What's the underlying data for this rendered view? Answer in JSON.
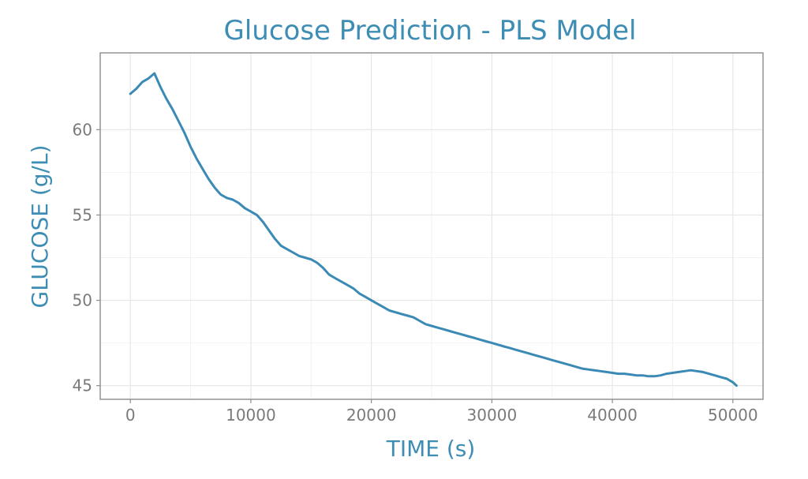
{
  "chart_data": {
    "type": "line",
    "title": "Glucose Prediction - PLS Model",
    "xlabel": "TIME (s)",
    "ylabel": "GLUCOSE (g/L)",
    "xlim": [
      -2500,
      52500
    ],
    "ylim": [
      44.2,
      64.5
    ],
    "x_ticks": [
      0,
      10000,
      20000,
      30000,
      40000,
      50000
    ],
    "x_tick_labels": [
      "0",
      "10000",
      "20000",
      "30000",
      "40000",
      "50000"
    ],
    "y_ticks": [
      45,
      50,
      55,
      60
    ],
    "y_tick_labels": [
      "45",
      "50",
      "55",
      "60"
    ],
    "grid": true,
    "colors": {
      "accent": "#3d8db5",
      "line": "#3b8ab5"
    },
    "series": [
      {
        "name": "Glucose",
        "x": [
          0,
          500,
          1000,
          1500,
          2000,
          2500,
          3000,
          3500,
          4000,
          4500,
          5000,
          5500,
          6000,
          6500,
          7000,
          7500,
          8000,
          8500,
          9000,
          9500,
          10000,
          10500,
          11000,
          11500,
          12000,
          12500,
          13000,
          13500,
          14000,
          14500,
          15000,
          15500,
          16000,
          16500,
          17000,
          17500,
          18000,
          18500,
          19000,
          19500,
          20000,
          20500,
          21000,
          21500,
          22000,
          22500,
          23000,
          23500,
          24000,
          24500,
          25000,
          25500,
          26000,
          26500,
          27000,
          27500,
          28000,
          28500,
          29000,
          29500,
          30000,
          30500,
          31000,
          31500,
          32000,
          32500,
          33000,
          33500,
          34000,
          34500,
          35000,
          35500,
          36000,
          36500,
          37000,
          37500,
          38000,
          38500,
          39000,
          39500,
          40000,
          40500,
          41000,
          41500,
          42000,
          42500,
          43000,
          43500,
          44000,
          44500,
          45000,
          45500,
          46000,
          46500,
          47000,
          47500,
          48000,
          48500,
          49000,
          49500,
          50000,
          50300
        ],
        "values": [
          62.1,
          62.4,
          62.8,
          63.0,
          63.3,
          62.5,
          61.8,
          61.2,
          60.5,
          59.8,
          59.0,
          58.3,
          57.7,
          57.1,
          56.6,
          56.2,
          56.0,
          55.9,
          55.7,
          55.4,
          55.2,
          55.0,
          54.6,
          54.1,
          53.6,
          53.2,
          53.0,
          52.8,
          52.6,
          52.5,
          52.4,
          52.2,
          51.9,
          51.5,
          51.3,
          51.1,
          50.9,
          50.7,
          50.4,
          50.2,
          50.0,
          49.8,
          49.6,
          49.4,
          49.3,
          49.2,
          49.1,
          49.0,
          48.8,
          48.6,
          48.5,
          48.4,
          48.3,
          48.2,
          48.1,
          48.0,
          47.9,
          47.8,
          47.7,
          47.6,
          47.5,
          47.4,
          47.3,
          47.2,
          47.1,
          47.0,
          46.9,
          46.8,
          46.7,
          46.6,
          46.5,
          46.4,
          46.3,
          46.2,
          46.1,
          46.0,
          45.95,
          45.9,
          45.85,
          45.8,
          45.75,
          45.7,
          45.7,
          45.65,
          45.6,
          45.6,
          45.55,
          45.55,
          45.6,
          45.7,
          45.75,
          45.8,
          45.85,
          45.9,
          45.85,
          45.8,
          45.7,
          45.6,
          45.5,
          45.4,
          45.2,
          45.0
        ]
      }
    ]
  }
}
